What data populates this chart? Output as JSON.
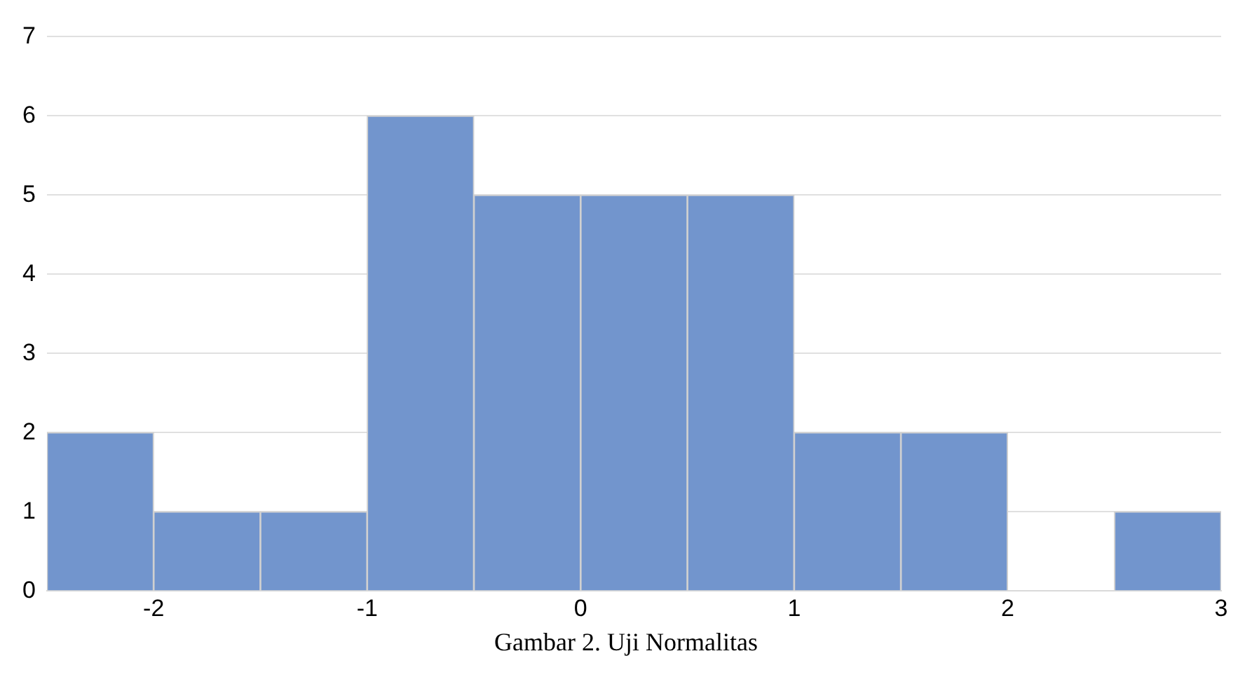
{
  "chart_data": {
    "type": "histogram",
    "bins": [
      -2.5,
      -2,
      -1.5,
      -1,
      -0.5,
      0,
      0.5,
      1,
      1.5,
      2,
      2.5,
      3
    ],
    "values": [
      2,
      1,
      1,
      6,
      5,
      5,
      5,
      2,
      2,
      0,
      1
    ],
    "color": "#7295cd",
    "xlim": [
      -2.5,
      3
    ],
    "xticks": [
      -2,
      -1,
      0,
      1,
      2,
      3
    ],
    "ylim": [
      0,
      7
    ],
    "yticks": [
      0,
      1,
      2,
      3,
      4,
      5,
      6,
      7
    ],
    "grid": "y",
    "legend": false,
    "annotations": [
      "Gambar 2. Uji Normalitas"
    ]
  }
}
